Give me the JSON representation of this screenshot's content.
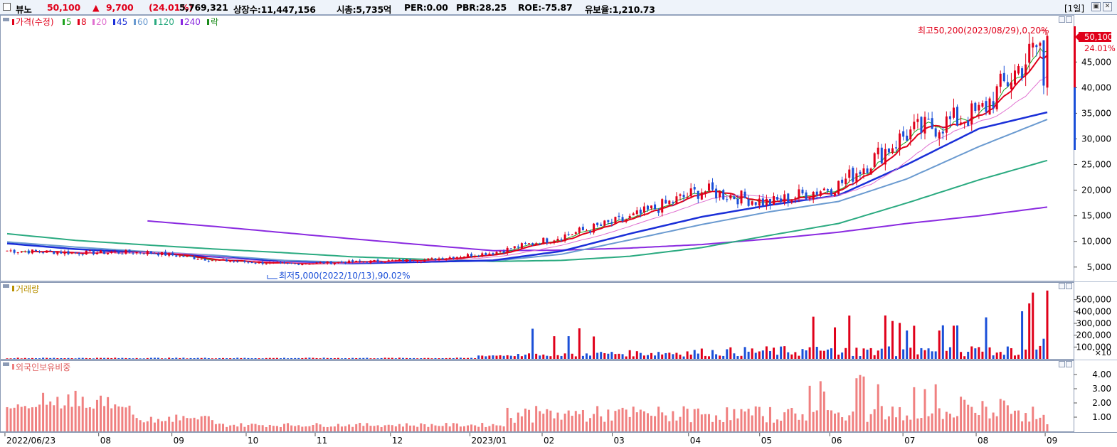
{
  "header": {
    "name": "뷰노",
    "price": "50,100",
    "change_arrow": "▲",
    "change": "9,700",
    "change_pct": "(24.01%)",
    "volume": "5,769,321",
    "listed_shares": "상장수:11,447,156",
    "market_cap": "시총:5,735억",
    "per": "PER:0.00",
    "pbr": "PBR:28.25",
    "roe": "ROE:-75.87",
    "retention": "유보율:1,210.73",
    "period": "[1일]",
    "restore_icon": "window-restore-icon",
    "close_icon": "close-icon"
  },
  "legend": {
    "price_label": "가격(수정)",
    "ma": [
      {
        "label": "5",
        "color": "#1fa31f"
      },
      {
        "label": "8",
        "color": "#e0001a"
      },
      {
        "label": "20",
        "color": "#e070d0"
      },
      {
        "label": "45",
        "color": "#1a2fd8"
      },
      {
        "label": "60",
        "color": "#6a9ad0"
      },
      {
        "label": "120",
        "color": "#2aaa80"
      },
      {
        "label": "240",
        "color": "#8a2ae0"
      }
    ],
    "ex_label": "락",
    "ex_color": "#1a8a1a",
    "volume_label": "거래량",
    "foreign_label": "외국인보유비중"
  },
  "annotations": {
    "high": "최고50,200(2023/08/29),0.20%",
    "low": "최저5,000(2022/10/13),90.02%",
    "current_price": "50,100",
    "current_pct": "24.01%"
  },
  "colors": {
    "up": "#e0001a",
    "down": "#1a4fd8",
    "foreign": "#f08080"
  },
  "chart_data": [
    {
      "type": "candlestick",
      "title": "가격(수정)",
      "x_ticks": [
        "2022/06/23",
        "08",
        "09",
        "10",
        "11",
        "12",
        "2023/01",
        "02",
        "03",
        "04",
        "05",
        "06",
        "07",
        "08",
        "09"
      ],
      "y_ticks": [
        "5,000",
        "10,000",
        "15,000",
        "20,000",
        "25,000",
        "30,000",
        "35,000",
        "40,000",
        "45,000"
      ],
      "ylim": [
        3000,
        53000
      ],
      "months": [
        {
          "label": "2022-06",
          "close": 8200,
          "ma45": 9600,
          "ma60": 9900,
          "ma120": 11500
        },
        {
          "label": "2022-07",
          "close": 7800,
          "ma45": 8500,
          "ma60": 8900,
          "ma120": 10200
        },
        {
          "label": "2022-08",
          "close": 7900,
          "ma45": 7800,
          "ma60": 8000,
          "ma120": 9300,
          "ma240": 14000
        },
        {
          "label": "2022-09",
          "close": 6300,
          "ma45": 7000,
          "ma60": 7300,
          "ma120": 8500,
          "ma240": 12900
        },
        {
          "label": "2022-10",
          "close": 5600,
          "ma45": 6000,
          "ma60": 6300,
          "ma120": 7800,
          "ma240": 11700
        },
        {
          "label": "2022-11",
          "close": 6000,
          "ma45": 5700,
          "ma60": 5900,
          "ma120": 7000,
          "ma240": 10500
        },
        {
          "label": "2022-12",
          "close": 6400,
          "ma45": 6000,
          "ma60": 6000,
          "ma120": 6500,
          "ma240": 9300
        },
        {
          "label": "2023-01",
          "close": 7800,
          "ma45": 6300,
          "ma60": 6200,
          "ma120": 6100,
          "ma240": 8200
        },
        {
          "label": "2023-02",
          "close": 11000,
          "ma45": 8100,
          "ma60": 7500,
          "ma120": 6300,
          "ma240": 8300
        },
        {
          "label": "2023-03",
          "close": 14500,
          "ma45": 11500,
          "ma60": 10300,
          "ma120": 7100,
          "ma240": 8700
        },
        {
          "label": "2023-04",
          "close": 20000,
          "ma45": 14800,
          "ma60": 13300,
          "ma120": 8800,
          "ma240": 9400
        },
        {
          "label": "2023-05",
          "close": 17500,
          "ma45": 17100,
          "ma60": 15800,
          "ma120": 11200,
          "ma240": 10500
        },
        {
          "label": "2023-06",
          "close": 21000,
          "ma45": 19000,
          "ma60": 17800,
          "ma120": 13500,
          "ma240": 11800
        },
        {
          "label": "2023-07",
          "close": 31000,
          "ma45": 25000,
          "ma60": 22200,
          "ma120": 17500,
          "ma240": 13500
        },
        {
          "label": "2023-08",
          "close": 35000,
          "ma45": 32000,
          "ma60": 28500,
          "ma120": 22000,
          "ma240": 15000
        },
        {
          "label": "2023-08-29",
          "close": 50100,
          "ma45": 35200,
          "ma60": 33800,
          "ma120": 25800,
          "ma240": 16700
        }
      ],
      "high": {
        "value": 50200,
        "date": "2023/08/29"
      },
      "low": {
        "value": 5000,
        "date": "2022/10/13"
      }
    },
    {
      "type": "bar",
      "title": "거래량",
      "y_ticks": [
        "100,000",
        "200,000",
        "300,000",
        "400,000",
        "500,000"
      ],
      "unit": "×10",
      "ylim": [
        0,
        600000
      ],
      "peaks": [
        {
          "label": "2023-02",
          "value": 290000
        },
        {
          "label": "2023-06",
          "value": 400000
        },
        {
          "label": "2023-07",
          "value": 380000
        },
        {
          "label": "2023-08",
          "value": 370000
        },
        {
          "label": "2023-08-29",
          "value": 576932
        }
      ]
    },
    {
      "type": "bar",
      "title": "외국인보유비중",
      "y_ticks": [
        "1.00",
        "2.00",
        "3.00",
        "4.00"
      ],
      "ylim": [
        0,
        4.6
      ],
      "peaks": [
        {
          "label": "2022-07",
          "value": 2.9
        },
        {
          "label": "2023-06",
          "value": 4.0
        },
        {
          "label": "2023-07",
          "value": 3.4
        },
        {
          "label": "2023-08",
          "value": 2.5
        }
      ]
    }
  ]
}
